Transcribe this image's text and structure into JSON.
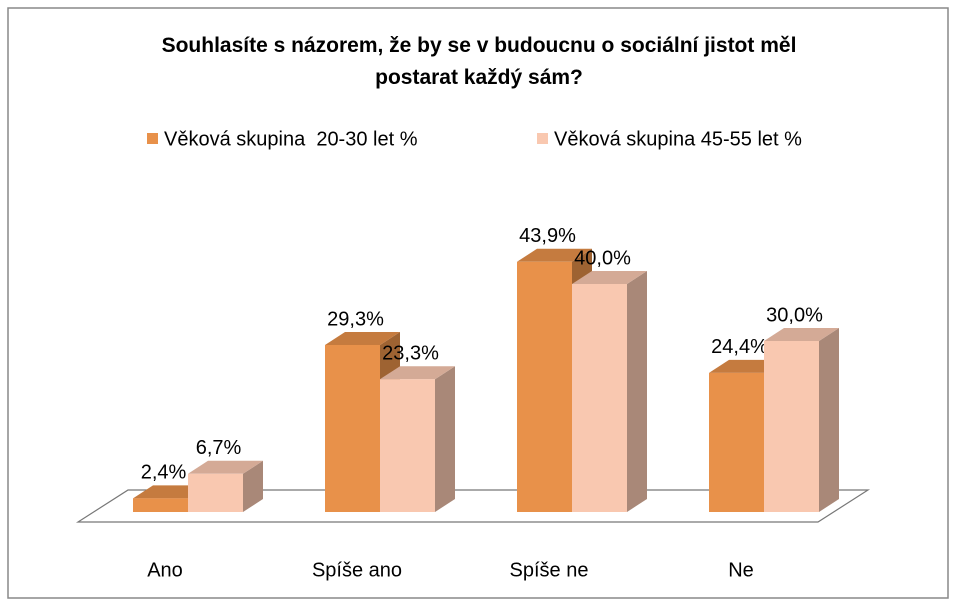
{
  "chart_data": {
    "type": "bar3d",
    "title": "Souhlasíte s názorem, že by se v budoucnu o sociální jistot měl postarat každý sám?",
    "categories": [
      "Ano",
      "Spíše ano",
      "Spíše ne",
      "Ne"
    ],
    "series": [
      {
        "name": "Věková skupina  20-30 let %",
        "color": "#e8914a",
        "values": [
          2.4,
          29.3,
          43.9,
          24.4
        ],
        "value_labels": [
          "2,4%",
          "29,3%",
          "43,9%",
          "24,4%"
        ]
      },
      {
        "name": "Věková skupina 45-55 let %",
        "color": "#f9c8b0",
        "values": [
          6.7,
          23.3,
          40.0,
          30.0
        ],
        "value_labels": [
          "6,7%",
          "23,3%",
          "40,0%",
          "30,0%"
        ]
      }
    ],
    "legend": "top"
  }
}
